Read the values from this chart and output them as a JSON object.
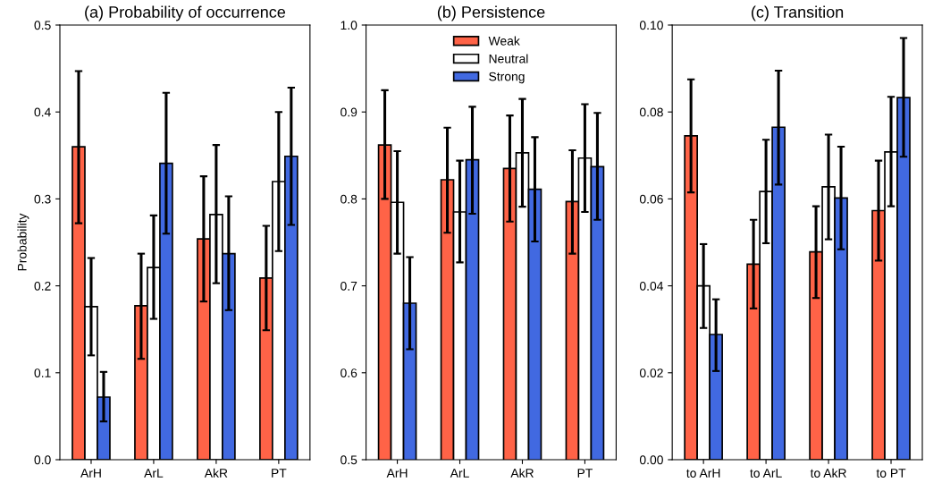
{
  "chart_data": [
    {
      "type": "bar",
      "title": "(a) Probability of occurrence",
      "ylabel": "Probability",
      "categories": [
        "ArH",
        "ArL",
        "AkR",
        "PT"
      ],
      "ylim": [
        0,
        0.5
      ],
      "yticks": [
        {
          "value": 0,
          "label": "0.0"
        },
        0.1,
        0.2,
        0.3,
        0.4,
        0.5
      ],
      "grid": false,
      "series": [
        {
          "color": "#ff6347",
          "values": [
            0.36,
            0.177,
            0.254,
            0.209
          ],
          "errors": [
            [
              0.272,
              0.447
            ],
            [
              0.116,
              0.237
            ],
            [
              0.182,
              0.326
            ],
            [
              0.149,
              0.269
            ]
          ]
        },
        {
          "color": "#ffffff",
          "values": [
            0.176,
            0.221,
            0.282,
            0.32
          ],
          "errors": [
            [
              0.12,
              0.232
            ],
            [
              0.162,
              0.281
            ],
            [
              0.203,
              0.362
            ],
            [
              0.24,
              0.4
            ]
          ]
        },
        {
          "color": "#4169e1",
          "values": [
            0.072,
            0.341,
            0.237,
            0.349
          ],
          "errors": [
            [
              0.044,
              0.101
            ],
            [
              0.26,
              0.422
            ],
            [
              0.172,
              0.303
            ],
            [
              0.27,
              0.428
            ]
          ]
        }
      ]
    },
    {
      "type": "bar",
      "title": "(b) Persistence",
      "categories": [
        "ArH",
        "ArL",
        "AkR",
        "PT"
      ],
      "ylim": [
        0.5,
        1.0
      ],
      "yticks": [
        0.5,
        0.6,
        0.7,
        0.8,
        0.9,
        {
          "value": 1.0,
          "label": "1.0"
        }
      ],
      "grid": false,
      "legend": "top",
      "series": [
        {
          "name": "Weak",
          "color": "#ff6347",
          "values": [
            0.862,
            0.822,
            0.835,
            0.797
          ],
          "errors": [
            [
              0.8,
              0.925
            ],
            [
              0.761,
              0.882
            ],
            [
              0.774,
              0.896
            ],
            [
              0.737,
              0.856
            ]
          ]
        },
        {
          "name": "Neutral",
          "color": "#ffffff",
          "values": [
            0.796,
            0.785,
            0.853,
            0.847
          ],
          "errors": [
            [
              0.737,
              0.855
            ],
            [
              0.727,
              0.844
            ],
            [
              0.791,
              0.915
            ],
            [
              0.785,
              0.909
            ]
          ]
        },
        {
          "name": "Strong",
          "color": "#4169e1",
          "values": [
            0.68,
            0.845,
            0.811,
            0.837
          ],
          "errors": [
            [
              0.627,
              0.733
            ],
            [
              0.783,
              0.906
            ],
            [
              0.751,
              0.871
            ],
            [
              0.776,
              0.899
            ]
          ]
        }
      ]
    },
    {
      "type": "bar",
      "title": "(c) Transition",
      "categories": [
        "to ArH",
        "to ArL",
        "to AkR",
        "to PT"
      ],
      "ylim": [
        0,
        0.1
      ],
      "yticks": [
        {
          "value": 0,
          "label": "0.00"
        },
        {
          "value": 0.02,
          "label": "0.02"
        },
        {
          "value": 0.04,
          "label": "0.04"
        },
        {
          "value": 0.06,
          "label": "0.06"
        },
        {
          "value": 0.08,
          "label": "0.08"
        },
        {
          "value": 0.1,
          "label": "0.10"
        }
      ],
      "grid": false,
      "series": [
        {
          "color": "#ff6347",
          "values": [
            0.0745,
            0.045,
            0.0478,
            0.0573
          ],
          "errors": [
            [
              0.0615,
              0.0875
            ],
            [
              0.0348,
              0.0552
            ],
            [
              0.0372,
              0.0583
            ],
            [
              0.0458,
              0.0688
            ]
          ]
        },
        {
          "color": "#ffffff",
          "values": [
            0.04,
            0.0617,
            0.0628,
            0.0708
          ],
          "errors": [
            [
              0.0303,
              0.0496
            ],
            [
              0.0498,
              0.0736
            ],
            [
              0.0507,
              0.0748
            ],
            [
              0.0583,
              0.0835
            ]
          ]
        },
        {
          "color": "#4169e1",
          "values": [
            0.0288,
            0.0765,
            0.0602,
            0.0833
          ],
          "errors": [
            [
              0.0204,
              0.0369
            ],
            [
              0.0633,
              0.0895
            ],
            [
              0.0484,
              0.072
            ],
            [
              0.0697,
              0.097
            ]
          ]
        }
      ]
    }
  ]
}
